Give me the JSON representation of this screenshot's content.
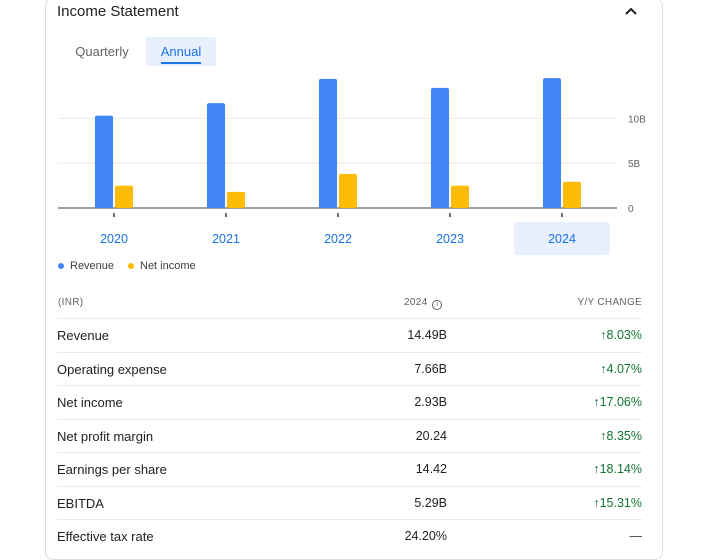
{
  "title": "Income Statement",
  "tabs": {
    "quarterly": "Quarterly",
    "annual": "Annual"
  },
  "colors": {
    "revenue": "#4285f4",
    "net_income": "#fbbc04",
    "accent": "#1a73e8",
    "positive": "#137333"
  },
  "chart_data": {
    "type": "bar",
    "categories": [
      "2020",
      "2021",
      "2022",
      "2023",
      "2024"
    ],
    "selected_category": "2024",
    "series": [
      {
        "name": "Revenue",
        "values": [
          10.3,
          11.7,
          14.4,
          13.4,
          14.49
        ]
      },
      {
        "name": "Net income",
        "values": [
          2.5,
          1.8,
          3.8,
          2.5,
          2.93
        ]
      }
    ],
    "y_ticks": [
      "0",
      "5B",
      "10B"
    ],
    "y_tick_values": [
      0,
      5,
      10
    ],
    "ylim": [
      0,
      14.5
    ],
    "unit": "B",
    "legend_position": "bottom-left",
    "grid": true
  },
  "table": {
    "header": {
      "currency": "(INR)",
      "year": "2024",
      "info_icon": "info-icon",
      "change": "Y/Y CHANGE"
    },
    "rows": [
      {
        "label": "Revenue",
        "value": "14.49B",
        "change": "8.03%",
        "dir": "up"
      },
      {
        "label": "Operating expense",
        "value": "7.66B",
        "change": "4.07%",
        "dir": "up"
      },
      {
        "label": "Net income",
        "value": "2.93B",
        "change": "17.06%",
        "dir": "up"
      },
      {
        "label": "Net profit margin",
        "value": "20.24",
        "change": "8.35%",
        "dir": "up"
      },
      {
        "label": "Earnings per share",
        "value": "14.42",
        "change": "18.14%",
        "dir": "up"
      },
      {
        "label": "EBITDA",
        "value": "5.29B",
        "change": "15.31%",
        "dir": "up"
      },
      {
        "label": "Effective tax rate",
        "value": "24.20%",
        "change": "—",
        "dir": "none"
      }
    ]
  }
}
